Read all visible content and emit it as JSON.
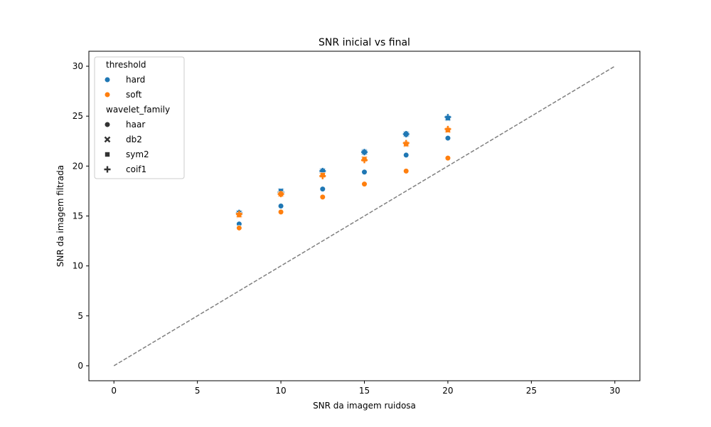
{
  "chart_data": {
    "type": "scatter",
    "title": "SNR inicial vs final",
    "xlabel": "SNR da imagem ruidosa",
    "ylabel": "SNR da imagem filtrada",
    "xlim": [
      -1.5,
      31.5
    ],
    "ylim": [
      -1.5,
      31.5
    ],
    "xticks": [
      0,
      5,
      10,
      15,
      20,
      25,
      30
    ],
    "yticks": [
      0,
      5,
      10,
      15,
      20,
      25,
      30
    ],
    "grid": false,
    "legend": {
      "placement": "top-left",
      "hue_title": "threshold",
      "hue_entries": [
        {
          "label": "hard",
          "color": "#1f77b4"
        },
        {
          "label": "soft",
          "color": "#ff7f0e"
        }
      ],
      "style_title": "wavelet_family",
      "style_entries": [
        {
          "label": "haar",
          "marker": "circle"
        },
        {
          "label": "db2",
          "marker": "x"
        },
        {
          "label": "sym2",
          "marker": "square"
        },
        {
          "label": "coif1",
          "marker": "plus"
        }
      ]
    },
    "reference_line": {
      "x": [
        0,
        30
      ],
      "y": [
        0,
        30
      ],
      "style": "dashed",
      "color": "#808080"
    },
    "series": [
      {
        "name": "hard",
        "wavelet": "haar",
        "color": "#1f77b4",
        "marker": "circle",
        "x": [
          7.5,
          10,
          12.5,
          15,
          17.5,
          20
        ],
        "y": [
          14.2,
          16.0,
          17.7,
          19.4,
          21.1,
          22.8
        ]
      },
      {
        "name": "hard",
        "wavelet": "db2",
        "color": "#1f77b4",
        "marker": "x",
        "x": [
          7.5,
          10,
          12.5,
          15,
          17.5,
          20
        ],
        "y": [
          15.3,
          17.5,
          19.5,
          21.4,
          23.2,
          24.8
        ]
      },
      {
        "name": "hard",
        "wavelet": "sym2",
        "color": "#1f77b4",
        "marker": "square",
        "x": [
          7.5,
          10,
          12.5,
          15,
          17.5,
          20
        ],
        "y": [
          15.3,
          17.5,
          19.5,
          21.4,
          23.2,
          24.8
        ]
      },
      {
        "name": "hard",
        "wavelet": "coif1",
        "color": "#1f77b4",
        "marker": "plus",
        "x": [
          7.5,
          10,
          12.5,
          15,
          17.5,
          20
        ],
        "y": [
          15.3,
          17.4,
          19.5,
          21.4,
          23.2,
          24.9
        ]
      },
      {
        "name": "soft",
        "wavelet": "haar",
        "color": "#ff7f0e",
        "marker": "circle",
        "x": [
          7.5,
          10,
          12.5,
          15,
          17.5,
          20
        ],
        "y": [
          13.8,
          15.4,
          16.9,
          18.2,
          19.5,
          20.8
        ]
      },
      {
        "name": "soft",
        "wavelet": "db2",
        "color": "#ff7f0e",
        "marker": "x",
        "x": [
          7.5,
          10,
          12.5,
          15,
          17.5,
          20
        ],
        "y": [
          15.1,
          17.2,
          19.1,
          20.7,
          22.2,
          23.6
        ]
      },
      {
        "name": "soft",
        "wavelet": "sym2",
        "color": "#ff7f0e",
        "marker": "square",
        "x": [
          7.5,
          10,
          12.5,
          15,
          17.5,
          20
        ],
        "y": [
          15.1,
          17.2,
          19.1,
          20.7,
          22.2,
          23.6
        ]
      },
      {
        "name": "soft",
        "wavelet": "coif1",
        "color": "#ff7f0e",
        "marker": "plus",
        "x": [
          7.5,
          10,
          12.5,
          15,
          17.5,
          20
        ],
        "y": [
          15.2,
          17.2,
          19.0,
          20.6,
          22.3,
          23.7
        ]
      }
    ]
  }
}
